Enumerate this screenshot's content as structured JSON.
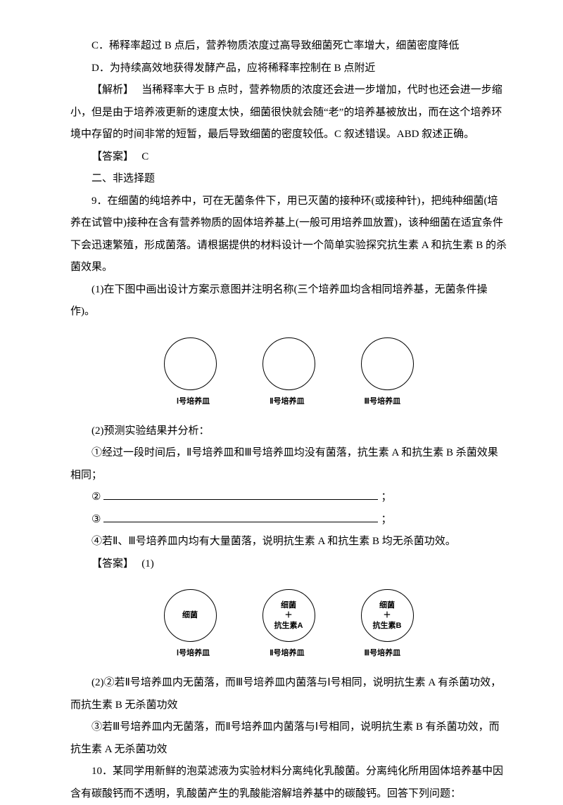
{
  "options": {
    "c": "C．稀释率超过 B 点后，营养物质浓度过高导致细菌死亡率增大，细菌密度降低",
    "d": "D．为持续高效地获得发酵产品，应将稀释率控制在 B 点附近"
  },
  "explanation": {
    "label": "【解析】",
    "text": "当稀释率大于 B 点时，营养物质的浓度还会进一步增加，代时也还会进一步缩小，但是由于培养液更新的速度太快，细菌很快就会随“老”的培养基被放出，而在这个培养环境中存留的时间非常的短暂，最后导致细菌的密度较低。C 叙述错误。ABD 叙述正确。"
  },
  "answer": {
    "label": "【答案】",
    "value": "C"
  },
  "section2": "二、非选择题",
  "q9": {
    "stem": "9．在细菌的纯培养中，可在无菌条件下，用已灭菌的接种环(或接种针)，把纯种细菌(培养在试管中)接种在含有营养物质的固体培养基上(一般可用培养皿放置)，该种细菌在适宜条件下会迅速繁殖，形成菌落。请根据提供的材料设计一个简单实验探究抗生素 A 和抗生素 B 的杀菌效果。",
    "part1": "(1)在下图中画出设计方案示意图并注明名称(三个培养皿均含相同培养基，无菌条件操作)。",
    "dishes": {
      "d1": "Ⅰ号培养皿",
      "d2": "Ⅱ号培养皿",
      "d3": "Ⅲ号培养皿"
    },
    "part2": "(2)预测实验结果并分析：",
    "item1": "①经过一段时间后，Ⅱ号培养皿和Ⅲ号培养皿均没有菌落，抗生素 A 和抗生素 B 杀菌效果相同；",
    "item2": "②",
    "item3": "③",
    "item4": "④若Ⅱ、Ⅲ号培养皿内均有大量菌落，说明抗生素 A 和抗生素 B 均无杀菌功效。",
    "semicolon": "；"
  },
  "q9answer": {
    "label": "【答案】",
    "part1": "(1)",
    "dishContents": {
      "d1_line1": "细菌",
      "d2_line1": "细菌",
      "d2_line2": "＋",
      "d2_line3": "抗生素A",
      "d3_line1": "细菌",
      "d3_line2": "＋",
      "d3_line3": "抗生素B"
    },
    "dishLabels": {
      "d1": "Ⅰ号培养皿",
      "d2": "Ⅱ号培养皿",
      "d3": "Ⅲ号培养皿"
    },
    "part2_2": "(2)②若Ⅱ号培养皿内无菌落，而Ⅲ号培养皿内菌落与Ⅰ号相同，说明抗生素 A 有杀菌功效，而抗生素 B 无杀菌功效",
    "part2_3": "③若Ⅲ号培养皿内无菌落，而Ⅱ号培养皿内菌落与Ⅰ号相同，说明抗生素 B 有杀菌功效，而抗生素 A 无杀菌功效"
  },
  "q10": {
    "stem": "10．某同学用新鲜的泡菜滤液为实验材料分离纯化乳酸菌。分离纯化所用固体培养基中因含有碳酸钙而不透明，乳酸菌产生的乳酸能溶解培养基中的碳酸钙。回答下列问题："
  }
}
